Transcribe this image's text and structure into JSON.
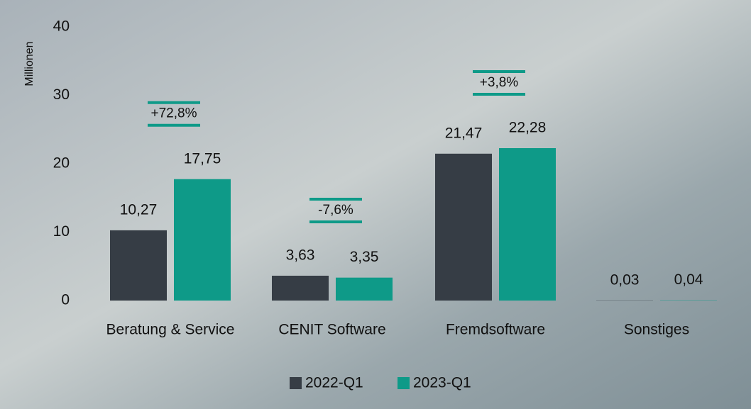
{
  "chart_data": {
    "type": "bar",
    "y_label": "Millionen",
    "categories": [
      "Beratung & Service",
      "CENIT Software",
      "Fremdsoftware",
      "Sonstiges"
    ],
    "series": [
      {
        "name": "2022-Q1",
        "color": "#363d45",
        "values": [
          10.27,
          3.63,
          21.47,
          0.03
        ],
        "value_labels": [
          "10,27",
          "3,63",
          "21,47",
          "0,03"
        ]
      },
      {
        "name": "2023-Q1",
        "color": "#0e9a88",
        "values": [
          17.75,
          3.35,
          22.28,
          0.04
        ],
        "value_labels": [
          "17,75",
          "3,35",
          "22,28",
          "0,04"
        ]
      }
    ],
    "annotations": [
      "+72,8%",
      "-7,6%",
      "+3,8%"
    ],
    "ylim": [
      0,
      40
    ],
    "yticks": [
      0,
      10,
      20,
      30,
      40
    ],
    "grid": false,
    "legend": "bottom"
  }
}
